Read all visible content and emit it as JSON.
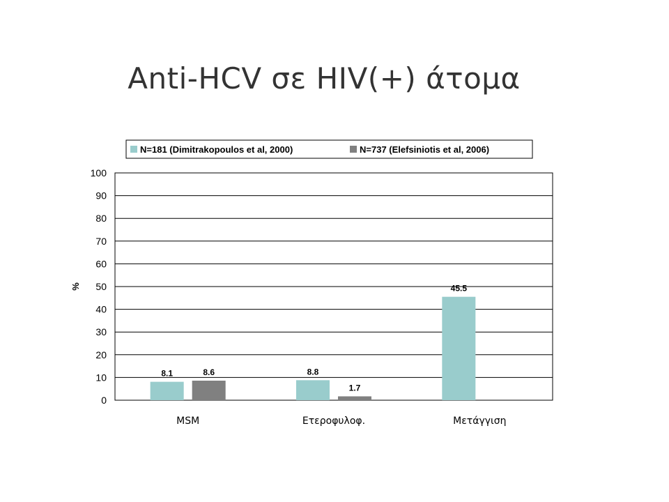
{
  "slide": {
    "title": "Anti-HCV σε HIV(+) άτομα"
  },
  "chart_data": {
    "type": "bar",
    "categories": [
      "MSM",
      "Ετεροφυλοφ.",
      "Μετάγγιση"
    ],
    "series": [
      {
        "name": "N=181 (Dimitrakopoulos et al, 2000)",
        "values": [
          8.1,
          8.8,
          45.5
        ],
        "color": "#99CCCC"
      },
      {
        "name": "N=737 (Elefsiniotis et al, 2006)",
        "values": [
          8.6,
          1.7,
          null
        ],
        "color": "#808080"
      }
    ],
    "data_labels": [
      [
        "8.1",
        "8.8",
        "45.5"
      ],
      [
        "8.6",
        "1.7",
        ""
      ]
    ],
    "ylabel": "%",
    "xlabel": "",
    "ylim": [
      0,
      100
    ],
    "yticks": [
      0,
      10,
      20,
      30,
      40,
      50,
      60,
      70,
      80,
      90,
      100
    ],
    "grid": true,
    "legend_position": "top"
  }
}
